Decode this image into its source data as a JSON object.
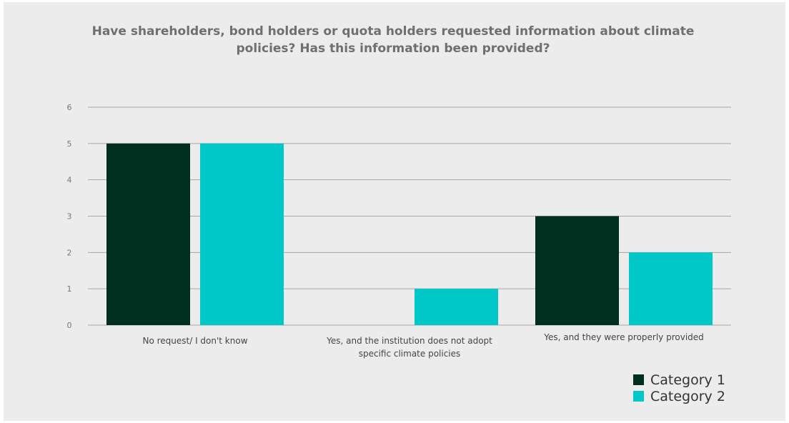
{
  "chart_data": {
    "type": "bar",
    "title": "Have shareholders, bond holders or quota holders requested information about climate policies? Has this information been provided?",
    "xlabel": "",
    "ylabel": "",
    "ylim": [
      0,
      6
    ],
    "yticks": [
      0,
      1,
      2,
      3,
      4,
      5,
      6
    ],
    "grid": true,
    "legend_position": "bottom-right",
    "categories": [
      [
        "No request/ I don't know"
      ],
      [
        "Yes, and the institution does not adopt",
        "specific climate policies"
      ],
      [
        "Yes, and they were properly provided"
      ]
    ],
    "series": [
      {
        "name": "Category 1",
        "color": "#002e1f",
        "values": [
          5,
          0,
          3
        ]
      },
      {
        "name": "Category 2",
        "color": "#00c8c8",
        "values": [
          5,
          1,
          2
        ]
      }
    ]
  }
}
